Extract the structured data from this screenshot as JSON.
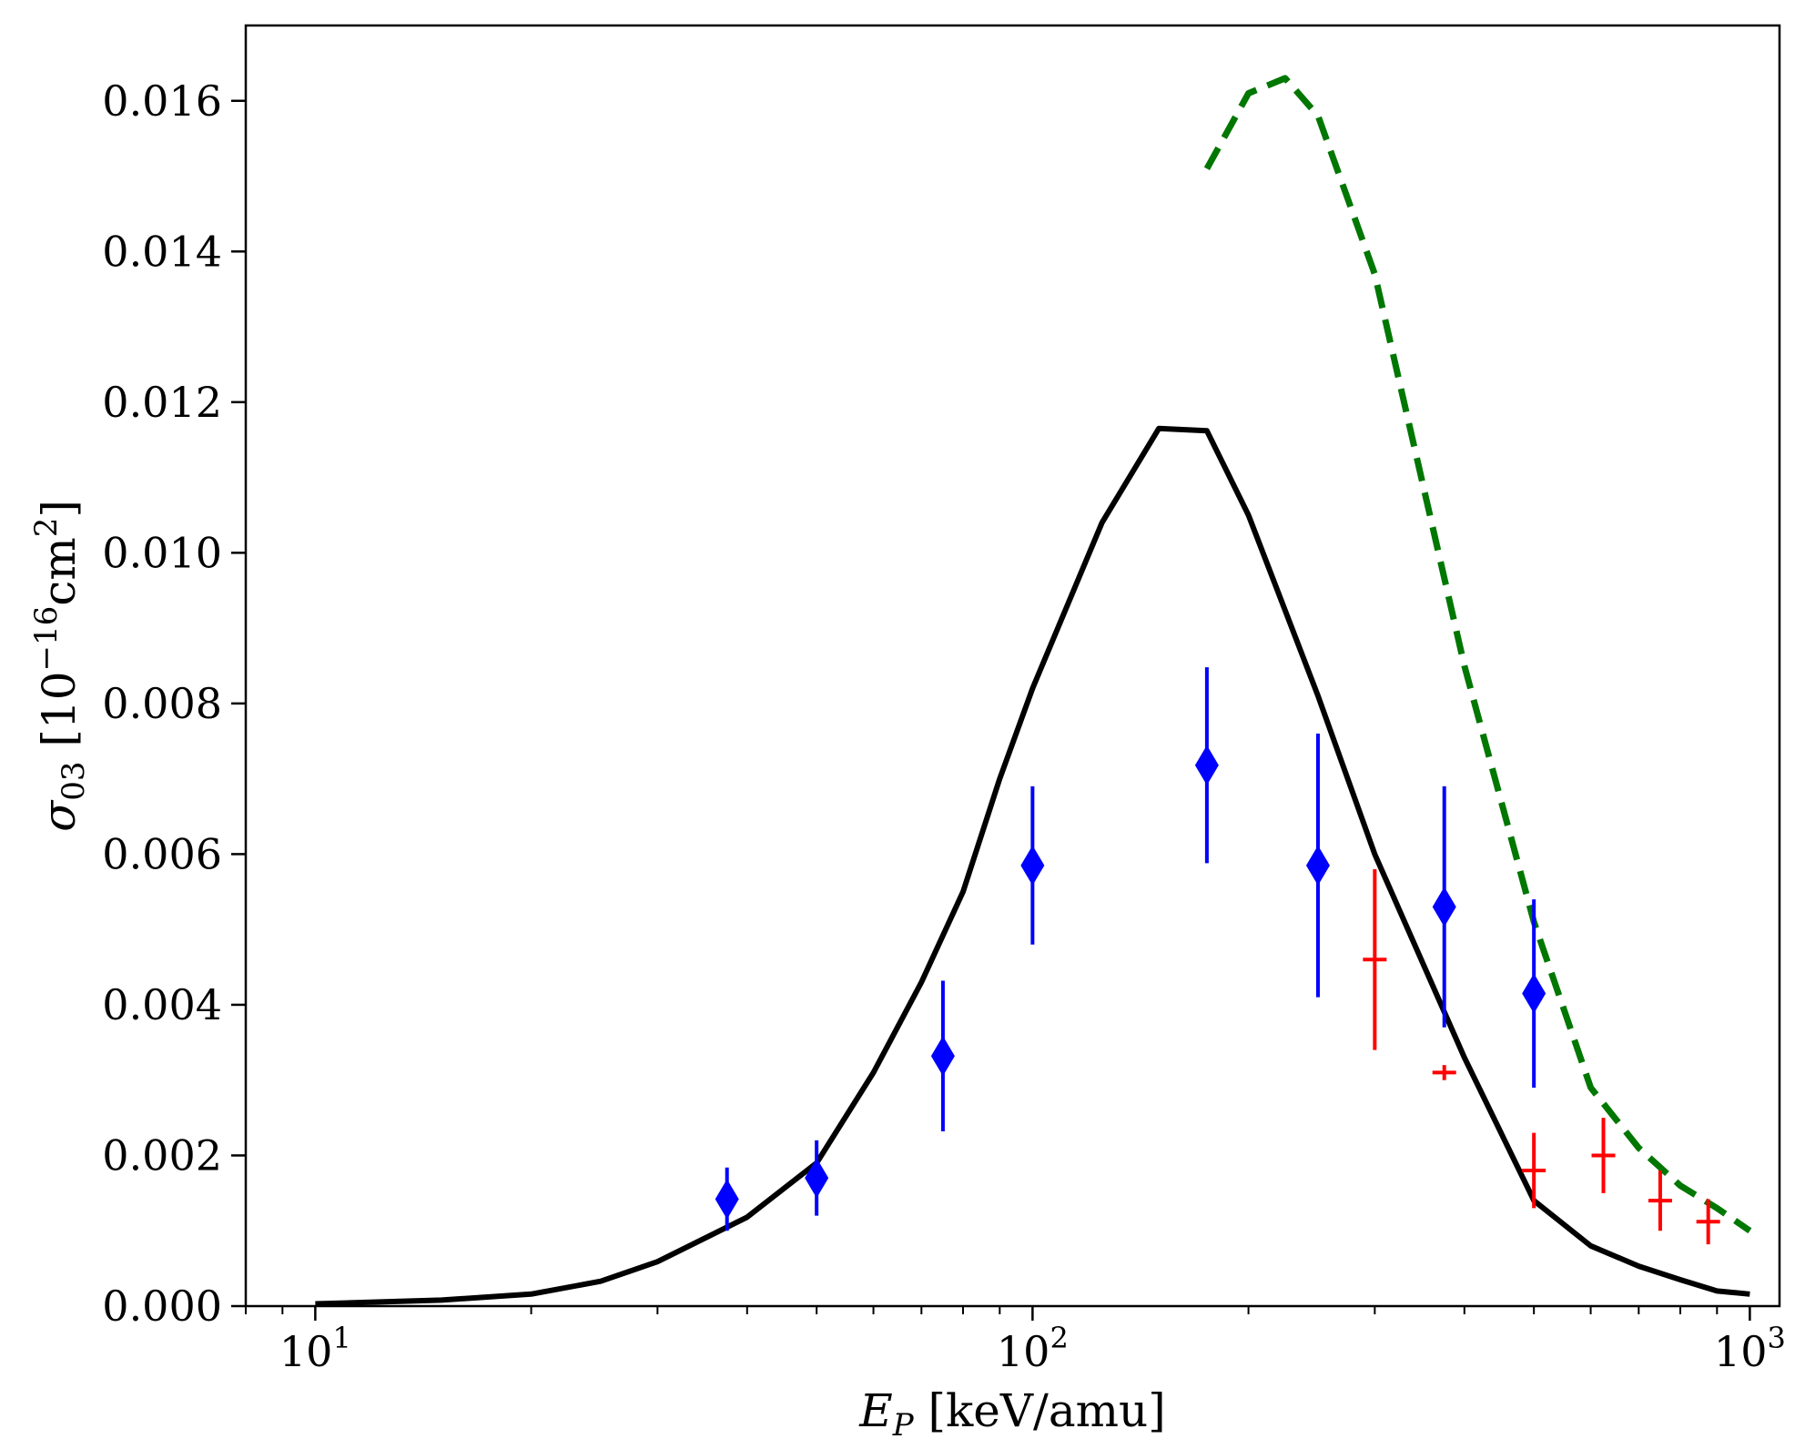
{
  "chart_data": {
    "type": "line",
    "xscale": "log",
    "xlim": [
      8,
      1100
    ],
    "ylim": [
      0,
      0.017
    ],
    "xlabel": "E_P [keV/amu]",
    "xlabel_main": "E",
    "xlabel_sub": "P",
    "xlabel_rest": " [keV/amu]",
    "ylabel_main": "σ",
    "ylabel_sub": "03",
    "ylabel_unit_prefix": " [10",
    "ylabel_unit_exp": "−16",
    "ylabel_unit_base": "cm",
    "ylabel_unit_exp2": "2",
    "ylabel_unit_suffix": "]",
    "ylabel": "σ_03 [10^-16 cm^2]",
    "y_ticks": [
      "0.000",
      "0.002",
      "0.004",
      "0.006",
      "0.008",
      "0.010",
      "0.012",
      "0.014",
      "0.016"
    ],
    "x_major_ticks": [
      {
        "value": 10,
        "base": "10",
        "exp": "1"
      },
      {
        "value": 100,
        "base": "10",
        "exp": "2"
      },
      {
        "value": 1000,
        "base": "10",
        "exp": "3"
      }
    ],
    "series": [
      {
        "name": "theory-solid",
        "color": "#000000",
        "style": "solid",
        "x": [
          10,
          15,
          20,
          25,
          30,
          40,
          50,
          60,
          70,
          80,
          90,
          100,
          125,
          150,
          175,
          200,
          250,
          300,
          400,
          500,
          600,
          700,
          800,
          900,
          1000
        ],
        "y": [
          3e-05,
          8e-05,
          0.00016,
          0.00033,
          0.00059,
          0.00118,
          0.0019,
          0.0031,
          0.0043,
          0.0055,
          0.007,
          0.0082,
          0.0104,
          0.01165,
          0.01162,
          0.0105,
          0.0081,
          0.006,
          0.0033,
          0.0014,
          0.0008,
          0.00053,
          0.00035,
          0.0002,
          0.00016
        ]
      },
      {
        "name": "theory-dashed",
        "color": "#007700",
        "style": "dashed",
        "x": [
          175,
          200,
          225,
          250,
          300,
          400,
          500,
          600,
          700,
          800,
          900,
          1000
        ],
        "y": [
          0.0151,
          0.0161,
          0.0163,
          0.0158,
          0.0137,
          0.0085,
          0.0051,
          0.0029,
          0.0021,
          0.0016,
          0.0013,
          0.001
        ]
      },
      {
        "name": "experiment-blue",
        "color": "#0000ff",
        "marker": "diamond",
        "x": [
          37.5,
          50,
          75,
          100,
          175,
          250,
          375,
          500
        ],
        "y": [
          0.00142,
          0.0017,
          0.00332,
          0.00585,
          0.00718,
          0.00585,
          0.0053,
          0.00415
        ],
        "err": [
          0.00042,
          0.0005,
          0.001,
          0.00105,
          0.0013,
          0.00175,
          0.0016,
          0.00125
        ]
      },
      {
        "name": "experiment-red",
        "color": "#ff0000",
        "marker": "plus",
        "x": [
          300,
          375,
          500,
          625,
          750,
          875
        ],
        "y": [
          0.0046,
          0.0031,
          0.0018,
          0.002,
          0.0014,
          0.00112
        ],
        "err": [
          0.0012,
          0.0001,
          0.0005,
          0.0005,
          0.0004,
          0.0003
        ]
      }
    ]
  }
}
